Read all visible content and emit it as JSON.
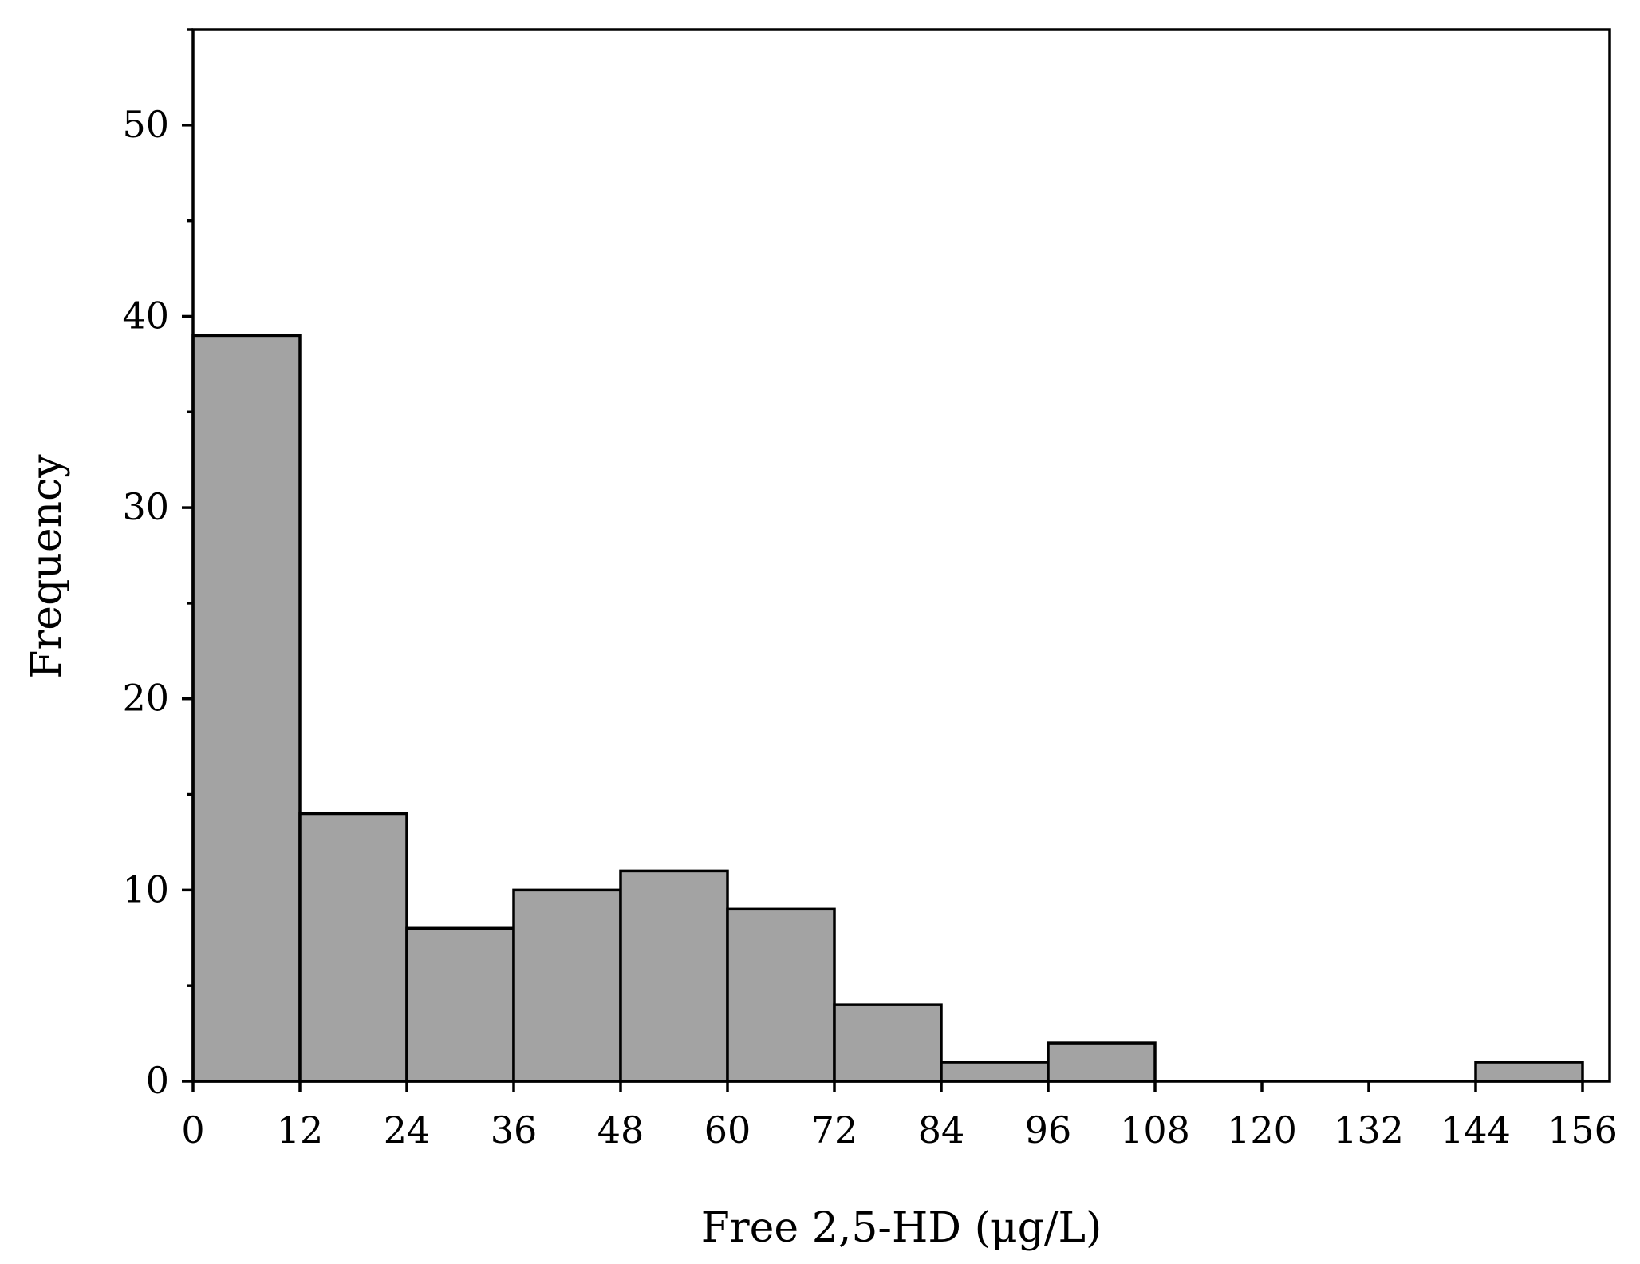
{
  "chart_data": {
    "type": "bar",
    "title": "",
    "xlabel": "Free 2,5-HD (μg/L)",
    "ylabel": "Frequency",
    "xlim": [
      0,
      160
    ],
    "ylim": [
      0,
      55
    ],
    "x_ticks": [
      0,
      12,
      24,
      36,
      48,
      60,
      72,
      84,
      96,
      108,
      120,
      132,
      144,
      156
    ],
    "y_ticks": [
      0,
      10,
      20,
      30,
      40,
      50
    ],
    "y_minor_step": 5,
    "bin_width": 12,
    "bins": [
      {
        "start": 0,
        "end": 12,
        "value": 39
      },
      {
        "start": 12,
        "end": 24,
        "value": 14
      },
      {
        "start": 24,
        "end": 36,
        "value": 8
      },
      {
        "start": 36,
        "end": 48,
        "value": 10
      },
      {
        "start": 48,
        "end": 60,
        "value": 11
      },
      {
        "start": 60,
        "end": 72,
        "value": 9
      },
      {
        "start": 72,
        "end": 84,
        "value": 4
      },
      {
        "start": 84,
        "end": 96,
        "value": 1
      },
      {
        "start": 96,
        "end": 108,
        "value": 2
      },
      {
        "start": 108,
        "end": 120,
        "value": 0
      },
      {
        "start": 120,
        "end": 132,
        "value": 0
      },
      {
        "start": 132,
        "end": 144,
        "value": 0
      },
      {
        "start": 144,
        "end": 156,
        "value": 1
      }
    ],
    "bar_color": "#a3a3a3",
    "grid": false,
    "legend": "none"
  }
}
